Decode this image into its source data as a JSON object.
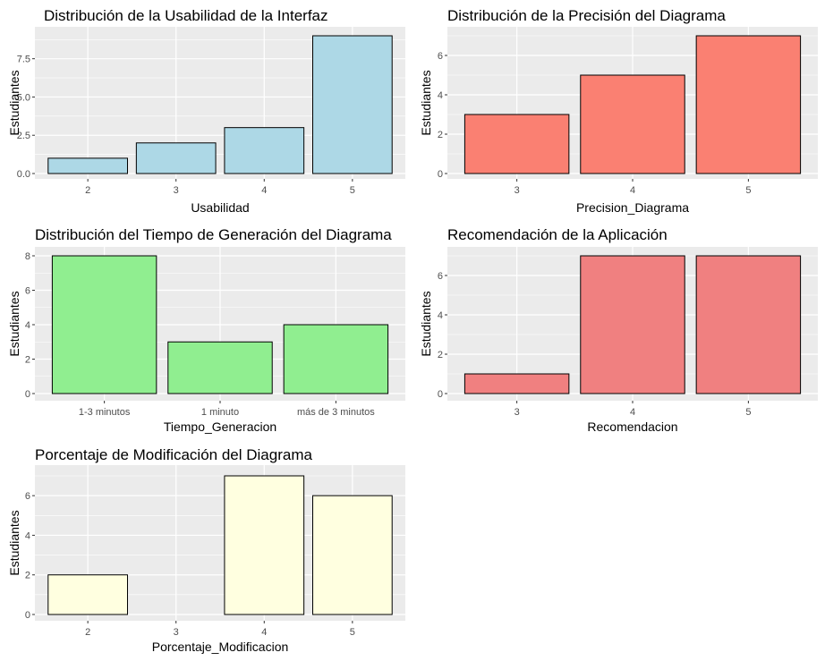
{
  "chart_data": [
    {
      "type": "bar",
      "title": "Distribución de la Usabilidad de la Interfaz",
      "xlabel": "Usabilidad",
      "ylabel": "Estudiantes",
      "categories": [
        "2",
        "3",
        "4",
        "5"
      ],
      "values": [
        1,
        2,
        3,
        9
      ],
      "yticks": [
        "0.0",
        "2.5",
        "5.0",
        "7.5"
      ],
      "ylim": [
        0,
        9
      ],
      "fill": "#add8e6",
      "grid": true
    },
    {
      "type": "bar",
      "title": "Distribución de la Precisión del Diagrama",
      "xlabel": "Precision_Diagrama",
      "ylabel": "Estudiantes",
      "categories": [
        "3",
        "4",
        "5"
      ],
      "values": [
        3,
        5,
        7
      ],
      "yticks": [
        "0",
        "2",
        "4",
        "6"
      ],
      "ylim": [
        0,
        7
      ],
      "fill": "#fa8072",
      "grid": true
    },
    {
      "type": "bar",
      "title": "Distribución del Tiempo de Generación del Diagrama",
      "xlabel": "Tiempo_Generacion",
      "ylabel": "Estudiantes",
      "categories": [
        "1-3 minutos",
        "1 minuto",
        "más de 3 minutos"
      ],
      "values": [
        8,
        3,
        4
      ],
      "yticks": [
        "0",
        "2",
        "4",
        "6",
        "8"
      ],
      "ylim": [
        0,
        8
      ],
      "fill": "#90ee90",
      "grid": true
    },
    {
      "type": "bar",
      "title": "Recomendación de la Aplicación",
      "xlabel": "Recomendacion",
      "ylabel": "Estudiantes",
      "categories": [
        "3",
        "4",
        "5"
      ],
      "values": [
        1,
        7,
        7
      ],
      "yticks": [
        "0",
        "2",
        "4",
        "6"
      ],
      "ylim": [
        0,
        7
      ],
      "fill": "#f08080",
      "grid": true
    },
    {
      "type": "bar",
      "title": "Porcentaje de Modificación del Diagrama",
      "xlabel": "Porcentaje_Modificacion",
      "ylabel": "Estudiantes",
      "categories": [
        "2",
        "3",
        "4",
        "5"
      ],
      "values": [
        2,
        0,
        7,
        6
      ],
      "yticks": [
        "0",
        "2",
        "4",
        "6"
      ],
      "ylim": [
        0,
        7
      ],
      "fill": "#ffffe0",
      "grid": true
    }
  ],
  "style": {
    "panel_background": "#ebebeb",
    "grid_color": "#ffffff",
    "bar_outline": "#000000",
    "tick_color": "#4d4d4d"
  }
}
